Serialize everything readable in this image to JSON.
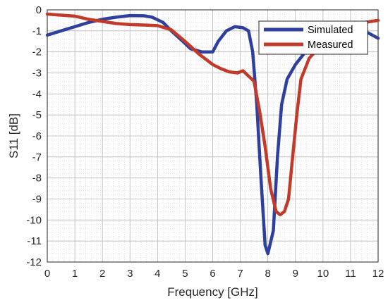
{
  "chart_data": {
    "type": "line",
    "xlabel": "Frequency [GHz]",
    "ylabel": "S11 [dB]",
    "xlim": [
      0,
      12
    ],
    "ylim": [
      -12,
      0
    ],
    "x_ticks": [
      0,
      1,
      2,
      3,
      4,
      5,
      6,
      7,
      8,
      9,
      10,
      11,
      12
    ],
    "y_ticks": [
      0,
      -1,
      -2,
      -3,
      -4,
      -5,
      -6,
      -7,
      -8,
      -9,
      -10,
      -11,
      -12
    ],
    "grid": true,
    "minor_grid": true,
    "legend_position": "top-right",
    "series": [
      {
        "name": "Simulated",
        "color": "#2e3f9e",
        "x": [
          0,
          0.5,
          1,
          1.5,
          2,
          2.5,
          3,
          3.5,
          3.8,
          4.2,
          4.5,
          5,
          5.2,
          5.6,
          6,
          6.2,
          6.5,
          6.8,
          7.1,
          7.3,
          7.45,
          7.6,
          7.75,
          7.9,
          8.0,
          8.2,
          8.35,
          8.5,
          8.7,
          9.0,
          9.3,
          9.6,
          10,
          10.5,
          11,
          11.5,
          12
        ],
        "y": [
          -1.2,
          -1.0,
          -0.8,
          -0.6,
          -0.45,
          -0.35,
          -0.27,
          -0.28,
          -0.35,
          -0.6,
          -1.0,
          -1.6,
          -1.85,
          -2.0,
          -2.0,
          -1.5,
          -1.0,
          -0.8,
          -0.85,
          -1.0,
          -2.0,
          -4.5,
          -8.0,
          -11.2,
          -11.6,
          -10.5,
          -7.0,
          -4.5,
          -3.3,
          -2.6,
          -2.1,
          -1.7,
          -1.2,
          -0.8,
          -0.6,
          -1.0,
          -1.35
        ]
      },
      {
        "name": "Measured",
        "color": "#c23b2a",
        "x": [
          0,
          0.5,
          1,
          1.5,
          2,
          2.5,
          3,
          3.5,
          4,
          4.5,
          5,
          5.5,
          6,
          6.3,
          6.6,
          6.9,
          7.1,
          7.3,
          7.5,
          7.7,
          7.9,
          8.1,
          8.3,
          8.45,
          8.6,
          8.75,
          8.9,
          9.05,
          9.2,
          9.5,
          10,
          10.5,
          11,
          11.5,
          12
        ],
        "y": [
          -0.2,
          -0.25,
          -0.3,
          -0.45,
          -0.55,
          -0.65,
          -0.7,
          -0.72,
          -0.75,
          -0.95,
          -1.5,
          -2.1,
          -2.6,
          -2.8,
          -2.95,
          -3.0,
          -2.9,
          -3.15,
          -3.4,
          -4.8,
          -6.5,
          -8.5,
          -9.6,
          -9.75,
          -9.6,
          -9.0,
          -7.0,
          -5.0,
          -3.3,
          -2.3,
          -1.6,
          -1.2,
          -0.85,
          -0.6,
          -0.5
        ]
      }
    ]
  }
}
